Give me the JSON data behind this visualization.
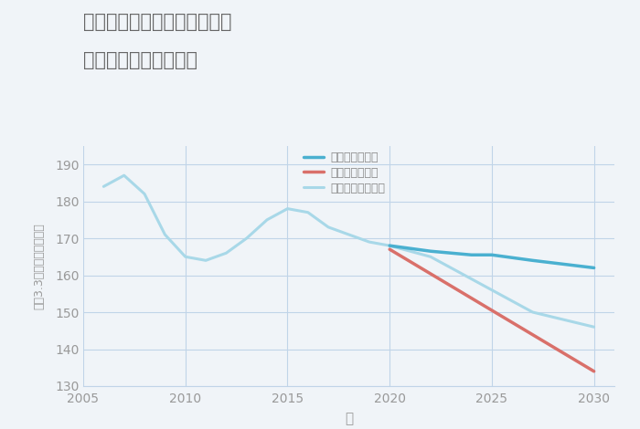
{
  "title_line1": "千葉県千葉市稲毛区千草台の",
  "title_line2": "中古戸建ての価格推移",
  "xlabel": "年",
  "ylabel": "坪（3.3㎡）単価（万円）",
  "background_color": "#f0f4f8",
  "plot_bg_color": "#f0f4f8",
  "good_scenario": {
    "label": "グッドシナリオ",
    "color": "#4ab0d0",
    "linewidth": 2.5,
    "x": [
      2020,
      2022,
      2024,
      2025,
      2027,
      2030
    ],
    "y": [
      168,
      166.5,
      165.5,
      165.5,
      164,
      162
    ]
  },
  "bad_scenario": {
    "label": "バッドシナリオ",
    "color": "#d9706a",
    "linewidth": 2.5,
    "x": [
      2020,
      2030
    ],
    "y": [
      167,
      134
    ]
  },
  "normal_scenario": {
    "label": "ノーマルシナリオ",
    "color": "#a8d8e8",
    "linewidth": 2.2,
    "x": [
      2006,
      2007,
      2008,
      2009,
      2010,
      2011,
      2012,
      2013,
      2014,
      2015,
      2016,
      2017,
      2018,
      2019,
      2020,
      2022,
      2025,
      2027,
      2030
    ],
    "y": [
      184,
      187,
      182,
      171,
      165,
      164,
      166,
      170,
      175,
      178,
      177,
      173,
      171,
      169,
      168,
      165,
      156,
      150,
      146
    ]
  },
  "ylim": [
    130,
    195
  ],
  "xlim": [
    2005,
    2031
  ],
  "yticks": [
    130,
    140,
    150,
    160,
    170,
    180,
    190
  ],
  "xticks": [
    2005,
    2010,
    2015,
    2020,
    2025,
    2030
  ],
  "grid_color": "#c0d4e8",
  "title_color": "#666666",
  "tick_color": "#999999",
  "label_color": "#999999",
  "legend_label_color": "#888888"
}
